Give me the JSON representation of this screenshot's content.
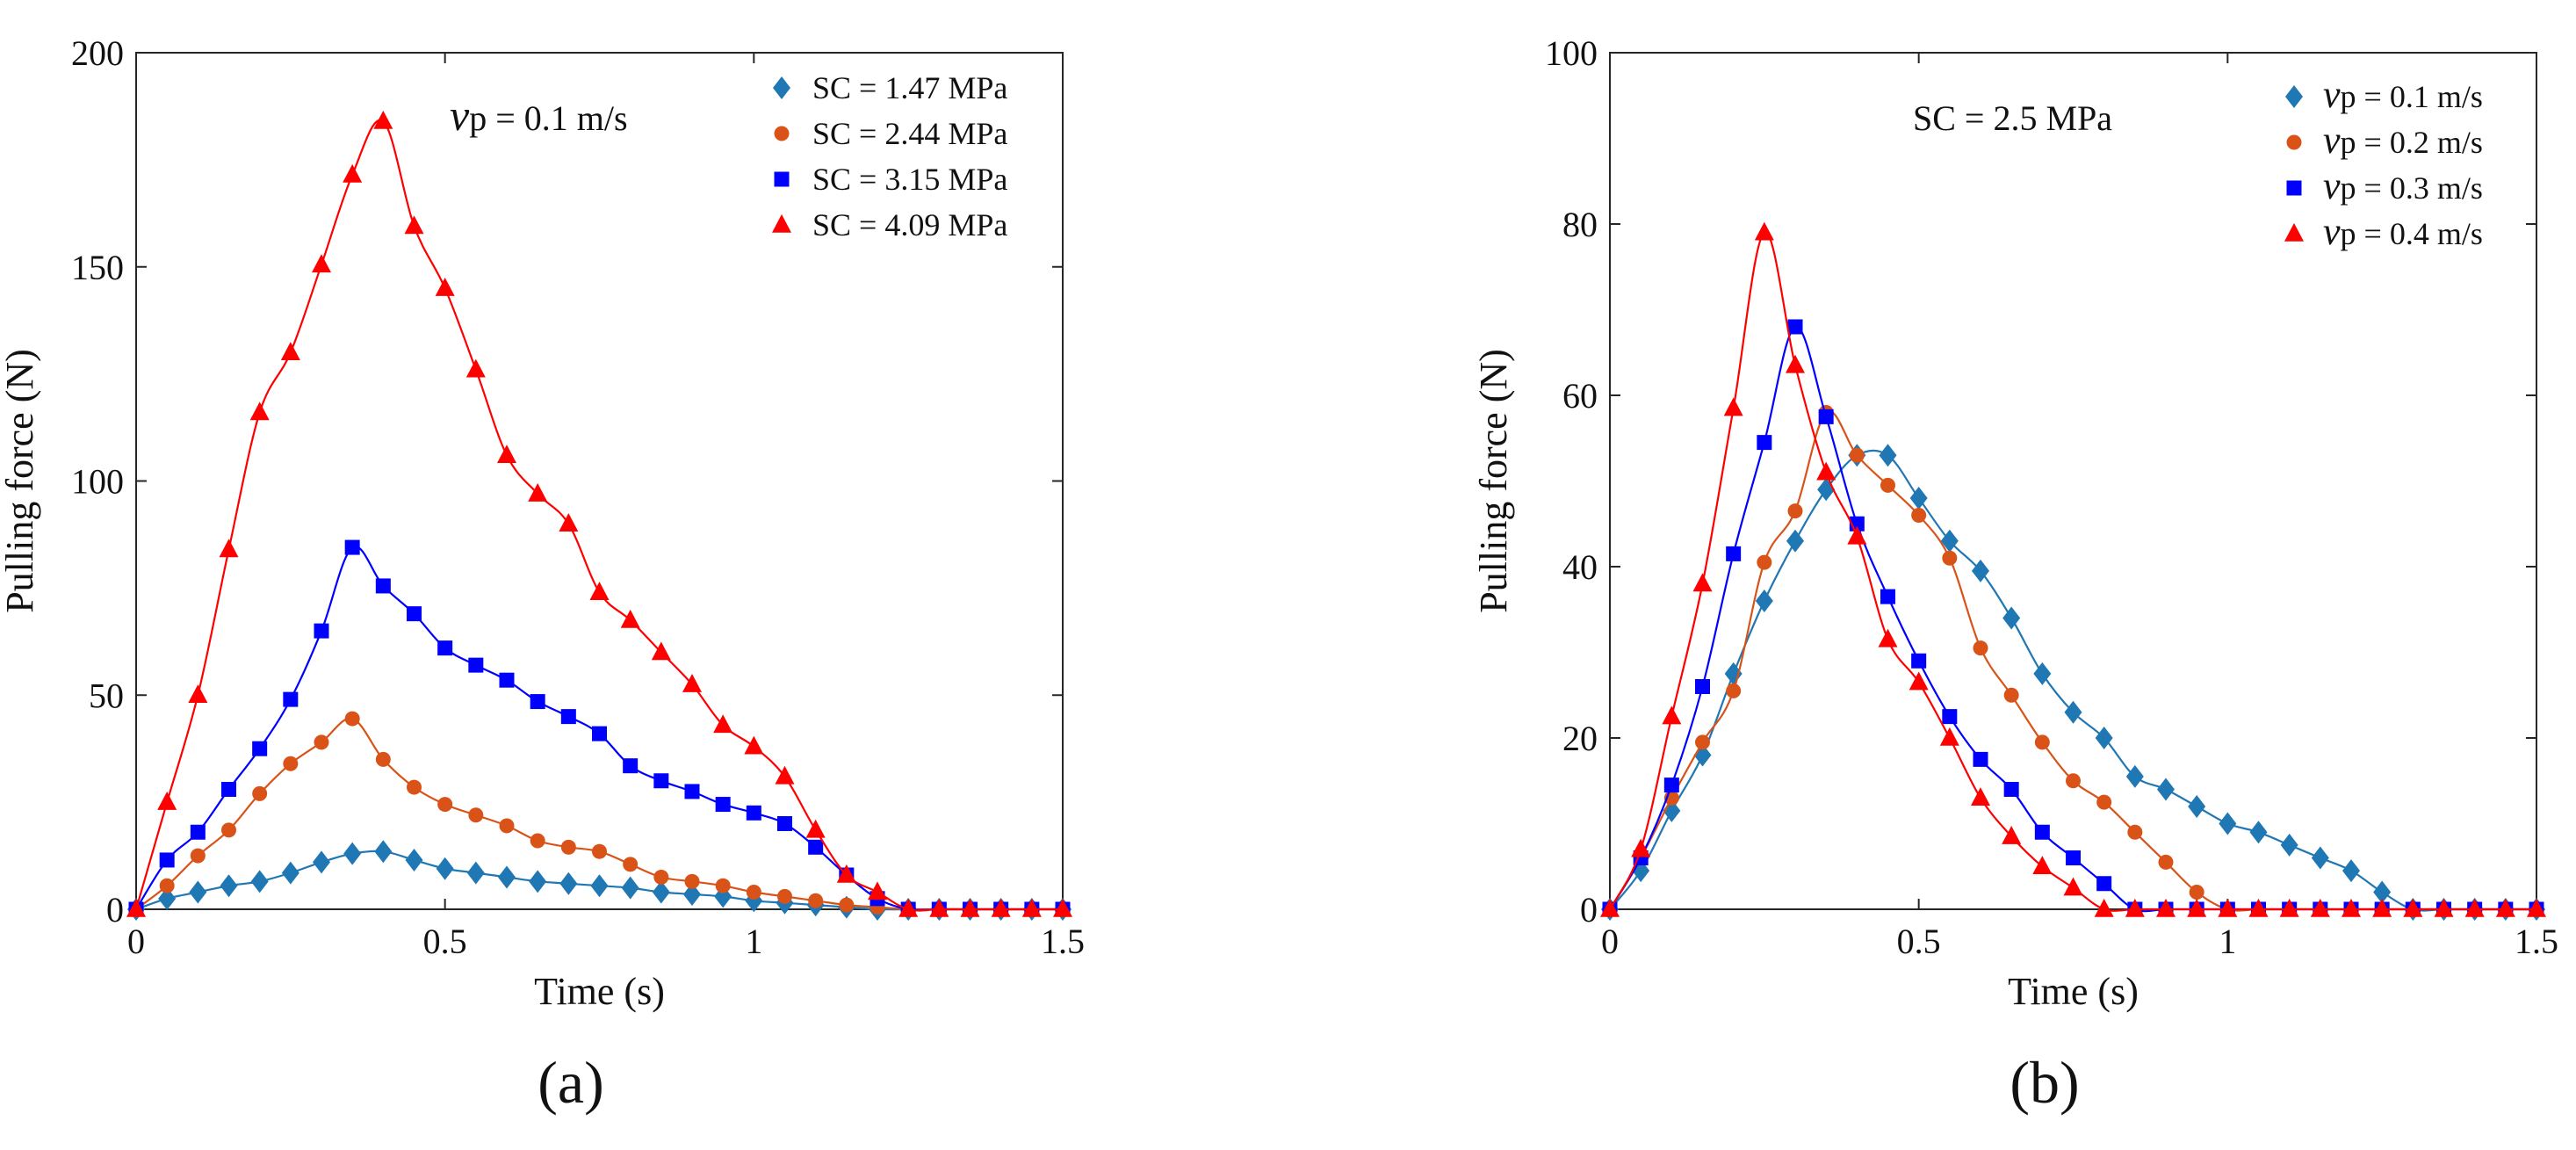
{
  "chart_data": [
    {
      "type": "line",
      "panel_label": "(a)",
      "annotation": {
        "symbol": "v",
        "subscript": "p",
        "value": " = 0.1 m/s"
      },
      "xlabel": "Time (s)",
      "ylabel": "Pulling force (N)",
      "xlim": [
        0,
        1.5
      ],
      "ylim": [
        0,
        200
      ],
      "xticks": [
        0,
        0.5,
        1,
        1.5
      ],
      "xtick_labels": [
        "0",
        "0.5",
        "1",
        "1.5"
      ],
      "yticks": [
        0,
        50,
        100,
        150,
        200
      ],
      "ytick_labels": [
        "0",
        "50",
        "100",
        "150",
        "200"
      ],
      "legend_position": "top-right",
      "series": [
        {
          "name": "SC = 1.47 MPa",
          "color": "#1f77b4",
          "marker": "diamond",
          "x": [
            0,
            0.05,
            0.1,
            0.15,
            0.2,
            0.25,
            0.3,
            0.35,
            0.4,
            0.45,
            0.5,
            0.55,
            0.6,
            0.65,
            0.7,
            0.75,
            0.8,
            0.85,
            0.9,
            0.95,
            1.0,
            1.05,
            1.1,
            1.15,
            1.2,
            1.25,
            1.3,
            1.35,
            1.4,
            1.45,
            1.5
          ],
          "y": [
            0,
            2.5,
            4,
            5.5,
            6.5,
            8.5,
            11,
            13,
            13.5,
            11.5,
            9.5,
            8.5,
            7.5,
            6.5,
            6,
            5.5,
            5,
            4,
            3.5,
            3,
            2,
            1.5,
            1,
            0.5,
            0,
            0,
            0,
            0,
            0,
            0,
            0
          ]
        },
        {
          "name": "SC = 2.44 MPa",
          "color": "#d95319",
          "marker": "circle",
          "x": [
            0,
            0.05,
            0.1,
            0.15,
            0.2,
            0.25,
            0.3,
            0.35,
            0.4,
            0.45,
            0.5,
            0.55,
            0.6,
            0.65,
            0.7,
            0.75,
            0.8,
            0.85,
            0.9,
            0.95,
            1.0,
            1.05,
            1.1,
            1.15,
            1.2,
            1.25,
            1.3,
            1.35,
            1.4,
            1.45,
            1.5
          ],
          "y": [
            0,
            5.5,
            12.5,
            18.5,
            27,
            34,
            39,
            44.5,
            35,
            28.5,
            24.5,
            22,
            19.5,
            16,
            14.5,
            13.5,
            10.5,
            7.5,
            6.5,
            5.5,
            4,
            3,
            2,
            1,
            0.5,
            0,
            0,
            0,
            0,
            0,
            0
          ]
        },
        {
          "name": "SC = 3.15 MPa",
          "color": "#0000ff",
          "marker": "square",
          "x": [
            0,
            0.05,
            0.1,
            0.15,
            0.2,
            0.25,
            0.3,
            0.35,
            0.4,
            0.45,
            0.5,
            0.55,
            0.6,
            0.65,
            0.7,
            0.75,
            0.8,
            0.85,
            0.9,
            0.95,
            1.0,
            1.05,
            1.1,
            1.15,
            1.2,
            1.25,
            1.3,
            1.35,
            1.4,
            1.45,
            1.5
          ],
          "y": [
            0,
            11.5,
            18,
            28,
            37.5,
            49,
            65,
            84.5,
            75.5,
            69,
            61,
            57,
            53.5,
            48.5,
            45,
            41,
            33.5,
            30,
            27.5,
            24.5,
            22.5,
            20,
            14.5,
            8,
            2.5,
            0,
            0,
            0,
            0,
            0,
            0
          ]
        },
        {
          "name": "SC = 4.09 MPa",
          "color": "#ff0000",
          "marker": "triangle",
          "x": [
            0,
            0.05,
            0.1,
            0.15,
            0.2,
            0.25,
            0.3,
            0.35,
            0.4,
            0.45,
            0.5,
            0.55,
            0.6,
            0.65,
            0.7,
            0.75,
            0.8,
            0.85,
            0.9,
            0.95,
            1.0,
            1.05,
            1.1,
            1.15,
            1.2,
            1.25,
            1.3,
            1.35,
            1.4,
            1.45,
            1.5
          ],
          "y": [
            0,
            25,
            50,
            84,
            116,
            130,
            150.5,
            171.5,
            184,
            159.5,
            145,
            126,
            106,
            97,
            90,
            74,
            67.5,
            60,
            52.5,
            43,
            38,
            31,
            18.5,
            8,
            4,
            0,
            0,
            0,
            0,
            0,
            0
          ]
        }
      ]
    },
    {
      "type": "line",
      "panel_label": "(b)",
      "annotation": {
        "text": "SC = 2.5 MPa"
      },
      "xlabel": "Time (s)",
      "ylabel": "Pulling force (N)",
      "xlim": [
        0,
        1.5
      ],
      "ylim": [
        0,
        100
      ],
      "xticks": [
        0,
        0.5,
        1,
        1.5
      ],
      "xtick_labels": [
        "0",
        "0.5",
        "1",
        "1.5"
      ],
      "yticks": [
        0,
        20,
        40,
        60,
        80,
        100
      ],
      "ytick_labels": [
        "0",
        "20",
        "40",
        "60",
        "80",
        "100"
      ],
      "legend_position": "top-right",
      "series": [
        {
          "name": "v",
          "legend_sub": "p",
          "legend_value": " = 0.1 m/s",
          "color": "#1f77b4",
          "marker": "diamond",
          "x": [
            0,
            0.05,
            0.1,
            0.15,
            0.2,
            0.25,
            0.3,
            0.35,
            0.4,
            0.45,
            0.5,
            0.55,
            0.6,
            0.65,
            0.7,
            0.75,
            0.8,
            0.85,
            0.9,
            0.95,
            1.0,
            1.05,
            1.1,
            1.15,
            1.2,
            1.25,
            1.3,
            1.35,
            1.4,
            1.45,
            1.5
          ],
          "y": [
            0,
            4.5,
            11.5,
            18,
            27.5,
            36,
            43,
            49,
            53,
            53,
            48,
            43,
            39.5,
            34,
            27.5,
            23,
            20,
            15.5,
            14,
            12,
            10,
            9,
            7.5,
            6,
            4.5,
            2,
            0,
            0,
            0,
            0,
            0
          ]
        },
        {
          "name": "v",
          "legend_sub": "p",
          "legend_value": " = 0.2 m/s",
          "color": "#d95319",
          "marker": "circle",
          "x": [
            0,
            0.05,
            0.1,
            0.15,
            0.2,
            0.25,
            0.3,
            0.35,
            0.4,
            0.45,
            0.5,
            0.55,
            0.6,
            0.65,
            0.7,
            0.75,
            0.8,
            0.85,
            0.9,
            0.95,
            1.0,
            1.05,
            1.1,
            1.15,
            1.2,
            1.25,
            1.3,
            1.35,
            1.4,
            1.45,
            1.5
          ],
          "y": [
            0,
            6,
            13,
            19.5,
            25.5,
            40.5,
            46.5,
            58,
            53,
            49.5,
            46,
            41,
            30.5,
            25,
            19.5,
            15,
            12.5,
            9,
            5.5,
            2,
            0,
            0,
            0,
            0,
            0,
            0,
            0,
            0,
            0,
            0,
            0
          ]
        },
        {
          "name": "v",
          "legend_sub": "p",
          "legend_value": " = 0.3 m/s",
          "color": "#0000ff",
          "marker": "square",
          "x": [
            0,
            0.05,
            0.1,
            0.15,
            0.2,
            0.25,
            0.3,
            0.35,
            0.4,
            0.45,
            0.5,
            0.55,
            0.6,
            0.65,
            0.7,
            0.75,
            0.8,
            0.85,
            0.9,
            0.95,
            1.0,
            1.05,
            1.1,
            1.15,
            1.2,
            1.25,
            1.3,
            1.35,
            1.4,
            1.45,
            1.5
          ],
          "y": [
            0,
            6,
            14.5,
            26,
            41.5,
            54.5,
            68,
            57.5,
            45,
            36.5,
            29,
            22.5,
            17.5,
            14,
            9,
            6,
            3,
            0,
            0,
            0,
            0,
            0,
            0,
            0,
            0,
            0,
            0,
            0,
            0,
            0,
            0
          ]
        },
        {
          "name": "v",
          "legend_sub": "p",
          "legend_value": " = 0.4 m/s",
          "color": "#ff0000",
          "marker": "triangle",
          "x": [
            0,
            0.05,
            0.1,
            0.15,
            0.2,
            0.25,
            0.3,
            0.35,
            0.4,
            0.45,
            0.5,
            0.55,
            0.6,
            0.65,
            0.7,
            0.75,
            0.8,
            0.85,
            0.9,
            0.95,
            1.0,
            1.05,
            1.1,
            1.15,
            1.2,
            1.25,
            1.3,
            1.35,
            1.4,
            1.45,
            1.5
          ],
          "y": [
            0,
            7,
            22.5,
            38,
            58.5,
            79,
            63.5,
            51,
            43.5,
            31.5,
            26.5,
            20,
            13,
            8.5,
            5,
            2.5,
            0,
            0,
            0,
            0,
            0,
            0,
            0,
            0,
            0,
            0,
            0,
            0,
            0,
            0,
            0
          ]
        }
      ]
    }
  ]
}
